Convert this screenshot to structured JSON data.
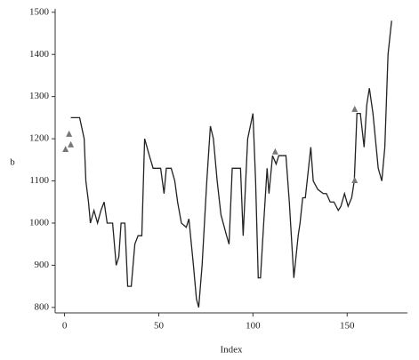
{
  "chart_data": {
    "type": "line",
    "x_label": "Index",
    "y_label": "b",
    "xlim": [
      -5,
      182
    ],
    "ylim": [
      787,
      1508
    ],
    "xticks": [
      0,
      50,
      100,
      150
    ],
    "yticks": [
      800,
      900,
      1000,
      1100,
      1200,
      1300,
      1400,
      1500
    ],
    "series": [
      {
        "color": "#222222",
        "style": "line",
        "x": [
          3.3,
          8,
          10.4,
          11.3,
          12.7,
          13.7,
          15.6,
          17.5,
          19.3,
          21,
          22.6,
          25.5,
          27.4,
          28.8,
          30,
          32,
          33.5,
          35.4,
          37.3,
          39,
          41,
          42.5,
          45,
          47,
          51,
          52.8,
          54,
          56.6,
          58.5,
          60,
          62,
          64.6,
          66,
          68.4,
          70,
          71.2,
          73,
          75.5,
          77.4,
          79,
          81,
          83,
          86,
          87.3,
          89,
          93.4,
          94.8,
          97.2,
          100,
          101.4,
          102.8,
          104,
          105.7,
          107.5,
          108.5,
          110.4,
          112.3,
          113.7,
          117.5,
          119.3,
          121.7,
          124,
          125,
          126.4,
          127.8,
          130.7,
          132,
          134.4,
          137.3,
          139,
          141,
          143,
          145.3,
          146.7,
          148.6,
          150.5,
          152.4,
          153.8,
          155.2,
          157,
          159,
          160.4,
          161.8,
          163.7,
          166.5,
          168.4,
          170,
          171.7,
          173.6
        ],
        "values": [
          1250,
          1250,
          1200,
          1100,
          1050,
          1000,
          1030,
          1000,
          1030,
          1050,
          1000,
          1000,
          900,
          920,
          1000,
          1000,
          850,
          850,
          950,
          970,
          970,
          1200,
          1160,
          1130,
          1130,
          1070,
          1130,
          1130,
          1100,
          1050,
          1000,
          990,
          1010,
          900,
          820,
          800,
          900,
          1100,
          1230,
          1200,
          1100,
          1020,
          970,
          950,
          1130,
          1130,
          970,
          1200,
          1260,
          1100,
          870,
          870,
          1000,
          1130,
          1070,
          1160,
          1140,
          1160,
          1160,
          1050,
          870,
          970,
          1000,
          1060,
          1060,
          1180,
          1100,
          1080,
          1070,
          1070,
          1050,
          1050,
          1030,
          1040,
          1070,
          1040,
          1060,
          1100,
          1260,
          1260,
          1180,
          1280,
          1320,
          1260,
          1130,
          1100,
          1180,
          1400,
          1480
        ]
      },
      {
        "color": "#777777",
        "style": "triangle",
        "x": [
          0.5,
          2.4,
          3.3,
          111.8,
          154,
          154
        ],
        "values": [
          1175,
          1211,
          1186,
          1169,
          1270,
          1101
        ]
      }
    ]
  }
}
